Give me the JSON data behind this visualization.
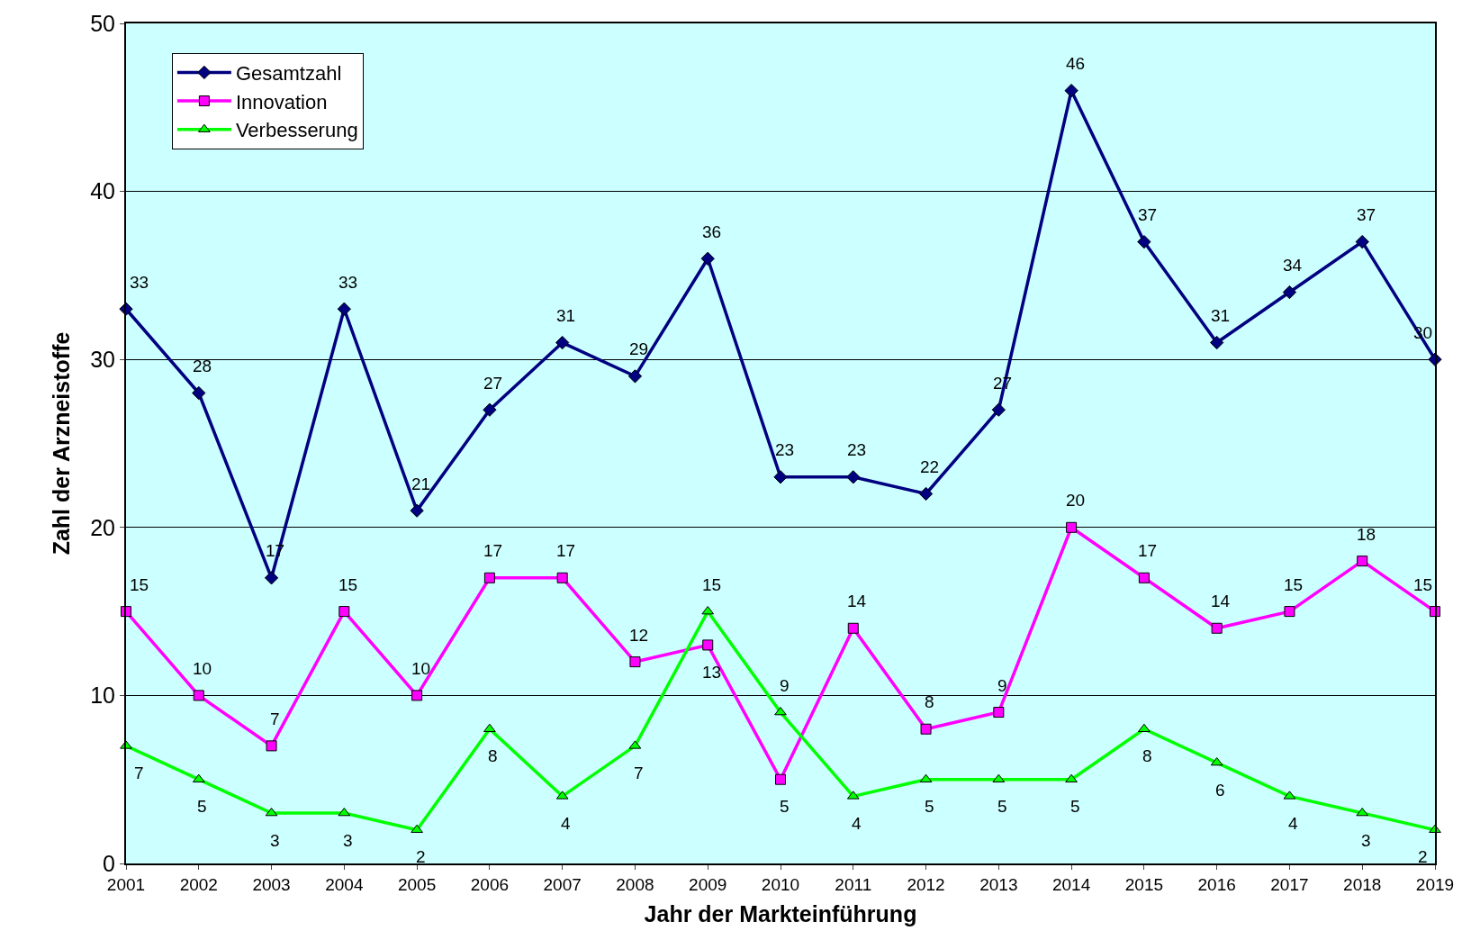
{
  "chart_data": {
    "type": "line",
    "xlabel": "Jahr der Markteinführung",
    "ylabel": "Zahl der Arzneistoffe",
    "x": [
      2001,
      2002,
      2003,
      2004,
      2005,
      2006,
      2007,
      2008,
      2009,
      2010,
      2011,
      2012,
      2013,
      2014,
      2015,
      2016,
      2017,
      2018,
      2019
    ],
    "series": [
      {
        "name": "Gesamtzahl",
        "color": "#000080",
        "marker": "diamond",
        "values": [
          33,
          28,
          17,
          33,
          21,
          27,
          31,
          29,
          36,
          23,
          23,
          22,
          27,
          46,
          37,
          31,
          34,
          37,
          30
        ]
      },
      {
        "name": "Innovation",
        "color": "#ff00ff",
        "marker": "square",
        "values": [
          15,
          10,
          7,
          15,
          10,
          17,
          17,
          12,
          13,
          5,
          14,
          8,
          9,
          20,
          17,
          14,
          15,
          18,
          15
        ]
      },
      {
        "name": "Verbesserung",
        "color": "#00ff00",
        "marker": "triangle",
        "values": [
          7,
          5,
          3,
          3,
          2,
          8,
          4,
          7,
          15,
          9,
          4,
          5,
          5,
          5,
          8,
          6,
          4,
          3,
          2
        ]
      }
    ],
    "xlim": [
      2001,
      2019
    ],
    "xticks": [
      2001,
      2002,
      2003,
      2004,
      2005,
      2006,
      2007,
      2008,
      2009,
      2010,
      2011,
      2012,
      2013,
      2014,
      2015,
      2016,
      2017,
      2018,
      2019
    ],
    "ylim": [
      0,
      50
    ],
    "yticks": [
      0,
      10,
      20,
      30,
      40,
      50
    ],
    "grid": "y",
    "legend": "top left",
    "data_labels": true,
    "line_style": "solid"
  }
}
